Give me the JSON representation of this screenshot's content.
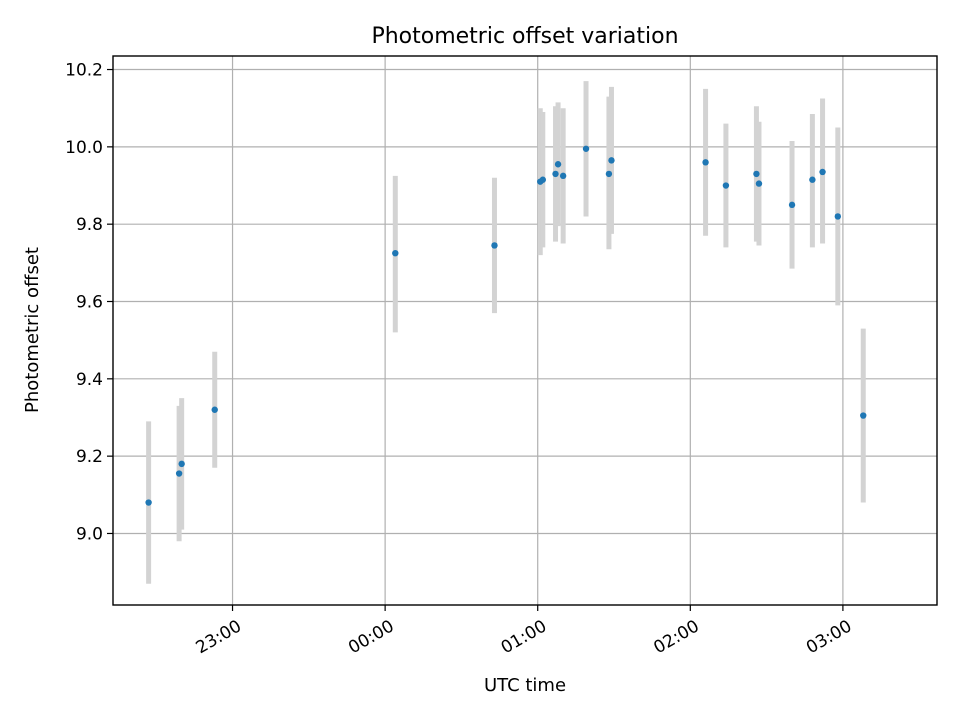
{
  "chart_data": {
    "type": "scatter",
    "title": "Photometric offset variation",
    "xlabel": "UTC time",
    "ylabel": "Photometric offset",
    "x_axis": {
      "kind": "time",
      "range": [
        "22:13",
        "03:37"
      ],
      "ticks": [
        "23:00",
        "00:00",
        "01:00",
        "02:00",
        "03:00"
      ]
    },
    "y_axis": {
      "range": [
        8.815,
        10.235
      ],
      "ticks": [
        "9.0",
        "9.2",
        "9.4",
        "9.6",
        "9.8",
        "10.0",
        "10.2"
      ]
    },
    "grid": true,
    "colors": {
      "points": "#1f77b4",
      "error_bars": "#d3d3d3"
    },
    "points": [
      {
        "time": "22:27",
        "y": 9.08,
        "ylow": 8.87,
        "yhigh": 9.29
      },
      {
        "time": "22:39",
        "y": 9.155,
        "ylow": 8.98,
        "yhigh": 9.33
      },
      {
        "time": "22:40",
        "y": 9.18,
        "ylow": 9.01,
        "yhigh": 9.35
      },
      {
        "time": "22:53",
        "y": 9.32,
        "ylow": 9.17,
        "yhigh": 9.47
      },
      {
        "time": "00:04",
        "y": 9.725,
        "ylow": 9.52,
        "yhigh": 9.925
      },
      {
        "time": "00:43",
        "y": 9.745,
        "ylow": 9.57,
        "yhigh": 9.92
      },
      {
        "time": "01:01",
        "y": 9.91,
        "ylow": 9.72,
        "yhigh": 10.1
      },
      {
        "time": "01:02",
        "y": 9.915,
        "ylow": 9.74,
        "yhigh": 10.09
      },
      {
        "time": "01:07",
        "y": 9.93,
        "ylow": 9.755,
        "yhigh": 10.105
      },
      {
        "time": "01:08",
        "y": 9.955,
        "ylow": 9.795,
        "yhigh": 10.115
      },
      {
        "time": "01:10",
        "y": 9.925,
        "ylow": 9.75,
        "yhigh": 10.1
      },
      {
        "time": "01:19",
        "y": 9.995,
        "ylow": 9.82,
        "yhigh": 10.17
      },
      {
        "time": "01:28",
        "y": 9.93,
        "ylow": 9.735,
        "yhigh": 10.13
      },
      {
        "time": "01:29",
        "y": 9.965,
        "ylow": 9.775,
        "yhigh": 10.155
      },
      {
        "time": "02:06",
        "y": 9.96,
        "ylow": 9.77,
        "yhigh": 10.15
      },
      {
        "time": "02:14",
        "y": 9.9,
        "ylow": 9.74,
        "yhigh": 10.06
      },
      {
        "time": "02:26",
        "y": 9.93,
        "ylow": 9.755,
        "yhigh": 10.105
      },
      {
        "time": "02:27",
        "y": 9.905,
        "ylow": 9.745,
        "yhigh": 10.065
      },
      {
        "time": "02:40",
        "y": 9.85,
        "ylow": 9.685,
        "yhigh": 10.015
      },
      {
        "time": "02:48",
        "y": 9.915,
        "ylow": 9.74,
        "yhigh": 10.085
      },
      {
        "time": "02:52",
        "y": 9.935,
        "ylow": 9.75,
        "yhigh": 10.125
      },
      {
        "time": "02:58",
        "y": 9.82,
        "ylow": 9.59,
        "yhigh": 10.05
      },
      {
        "time": "03:08",
        "y": 9.305,
        "ylow": 9.08,
        "yhigh": 9.53
      }
    ]
  }
}
